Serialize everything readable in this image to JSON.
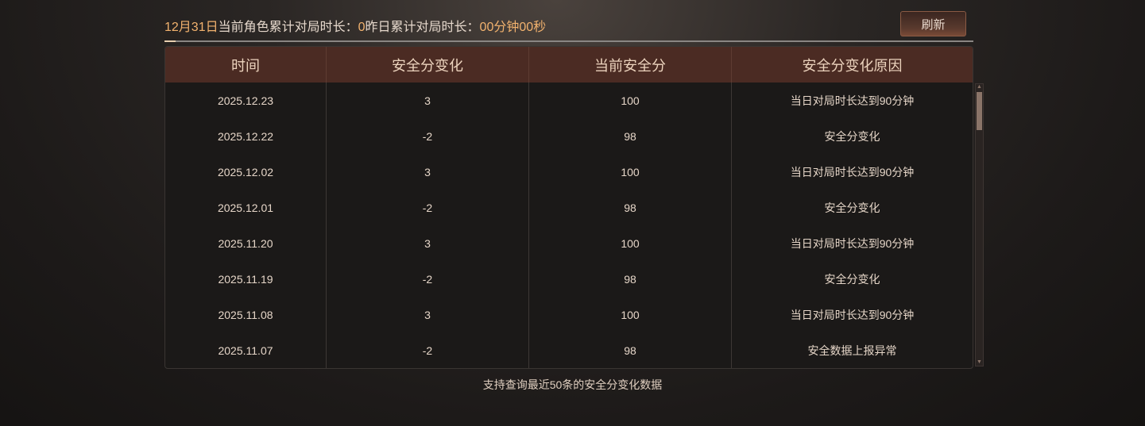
{
  "header": {
    "date": "12月31日",
    "current_label": "当前角色累计对局时长：",
    "current_value": "0",
    "yesterday_label": "昨日累计对局时长：",
    "yesterday_value": "00分钟00秒"
  },
  "toolbar": {
    "refresh_label": "刷新"
  },
  "table": {
    "columns": [
      "时间",
      "安全分变化",
      "当前安全分",
      "安全分变化原因"
    ],
    "rows": [
      [
        "2025.12.23",
        "3",
        "100",
        "当日对局时长达到90分钟"
      ],
      [
        "2025.12.22",
        "-2",
        "98",
        "安全分变化"
      ],
      [
        "2025.12.02",
        "3",
        "100",
        "当日对局时长达到90分钟"
      ],
      [
        "2025.12.01",
        "-2",
        "98",
        "安全分变化"
      ],
      [
        "2025.11.20",
        "3",
        "100",
        "当日对局时长达到90分钟"
      ],
      [
        "2025.11.19",
        "-2",
        "98",
        "安全分变化"
      ],
      [
        "2025.11.08",
        "3",
        "100",
        "当日对局时长达到90分钟"
      ],
      [
        "2025.11.07",
        "-2",
        "98",
        "安全数据上报异常"
      ]
    ]
  },
  "footer": {
    "note": "支持查询最近50条的安全分变化数据"
  },
  "colors": {
    "accent": "#f2b26e",
    "header_bg": "#4b2b23"
  }
}
